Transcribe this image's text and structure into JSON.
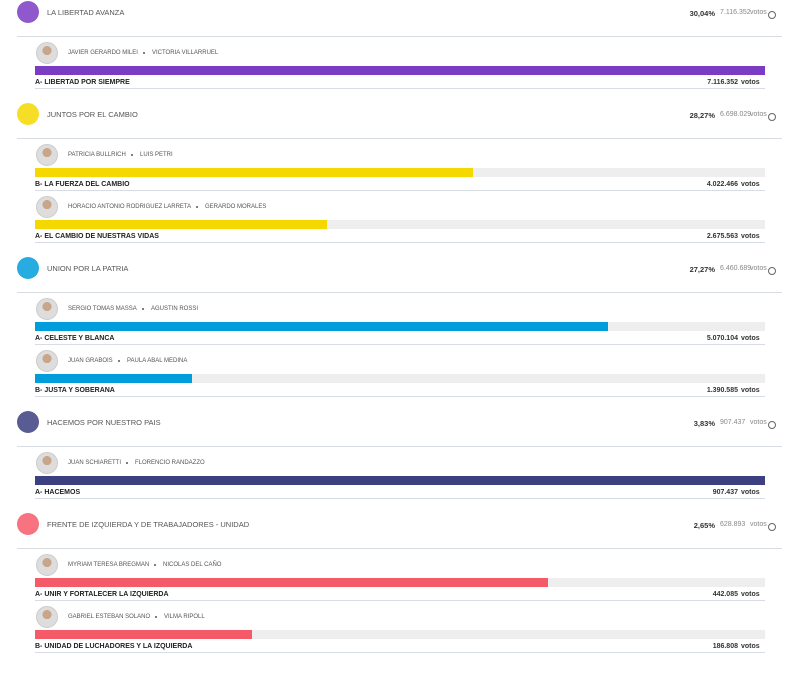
{
  "votes_unit": "votos",
  "parties": [
    {
      "name": "LA LIBERTAD AVANZA",
      "percent": "30,04%",
      "votes": {
        "value": 7116352,
        "label": "7.116.352"
      },
      "color": "#7b3cc4",
      "lists": [
        {
          "name": "A- LIBERTAD POR SIEMPRE",
          "candidates": [
            "JAVIER GERARDO MILEI",
            "VICTORIA VILLARRUEL"
          ],
          "votes": {
            "value": 7116352,
            "label": "7.116.352"
          }
        }
      ]
    },
    {
      "name": "JUNTOS POR EL CAMBIO",
      "percent": "28,27%",
      "votes": {
        "value": 6698029,
        "label": "6.698.029"
      },
      "color": "#f5d800",
      "lists": [
        {
          "name": "B- LA FUERZA DEL CAMBIO",
          "candidates": [
            "PATRICIA BULLRICH",
            "LUIS PETRI"
          ],
          "votes": {
            "value": 4022466,
            "label": "4.022.466"
          }
        },
        {
          "name": "A- EL CAMBIO DE NUESTRAS VIDAS",
          "candidates": [
            "HORACIO ANTONIO RODRIGUEZ LARRETA",
            "GERARDO MORALES"
          ],
          "votes": {
            "value": 2675563,
            "label": "2.675.563"
          }
        }
      ]
    },
    {
      "name": "UNION POR LA PATRIA",
      "percent": "27,27%",
      "votes": {
        "value": 6460689,
        "label": "6.460.689"
      },
      "color": "#009ddc",
      "lists": [
        {
          "name": "A- CELESTE Y BLANCA",
          "candidates": [
            "SERGIO TOMAS MASSA",
            "AGUSTIN ROSSI"
          ],
          "votes": {
            "value": 5070104,
            "label": "5.070.104"
          }
        },
        {
          "name": "B- JUSTA Y SOBERANA",
          "candidates": [
            "JUAN GRABOIS",
            "PAULA ABAL MEDINA"
          ],
          "votes": {
            "value": 1390585,
            "label": "1.390.585"
          }
        }
      ]
    },
    {
      "name": "HACEMOS POR NUESTRO PAIS",
      "percent": "3,83%",
      "votes": {
        "value": 907437,
        "label": "907.437"
      },
      "color": "#3c3f80",
      "lists": [
        {
          "name": "A- HACEMOS",
          "candidates": [
            "JUAN SCHIARETTI",
            "FLORENCIO RANDAZZO"
          ],
          "votes": {
            "value": 907437,
            "label": "907.437"
          }
        }
      ]
    },
    {
      "name": "FRENTE DE IZQUIERDA Y DE TRABAJADORES - UNIDAD",
      "percent": "2,65%",
      "votes": {
        "value": 628893,
        "label": "628.893"
      },
      "color": "#f45a68",
      "lists": [
        {
          "name": "A- UNIR Y FORTALECER LA IZQUIERDA",
          "candidates": [
            "MYRIAM TERESA BREGMAN",
            "NICOLAS DEL CAÑO"
          ],
          "votes": {
            "value": 442085,
            "label": "442.085"
          }
        },
        {
          "name": "B- UNIDAD DE LUCHADORES Y LA IZQUIERDA",
          "candidates": [
            "GABRIEL ESTEBAN SOLANO",
            "VILMA RIPOLL"
          ],
          "votes": {
            "value": 186808,
            "label": "186.808"
          }
        }
      ]
    }
  ]
}
